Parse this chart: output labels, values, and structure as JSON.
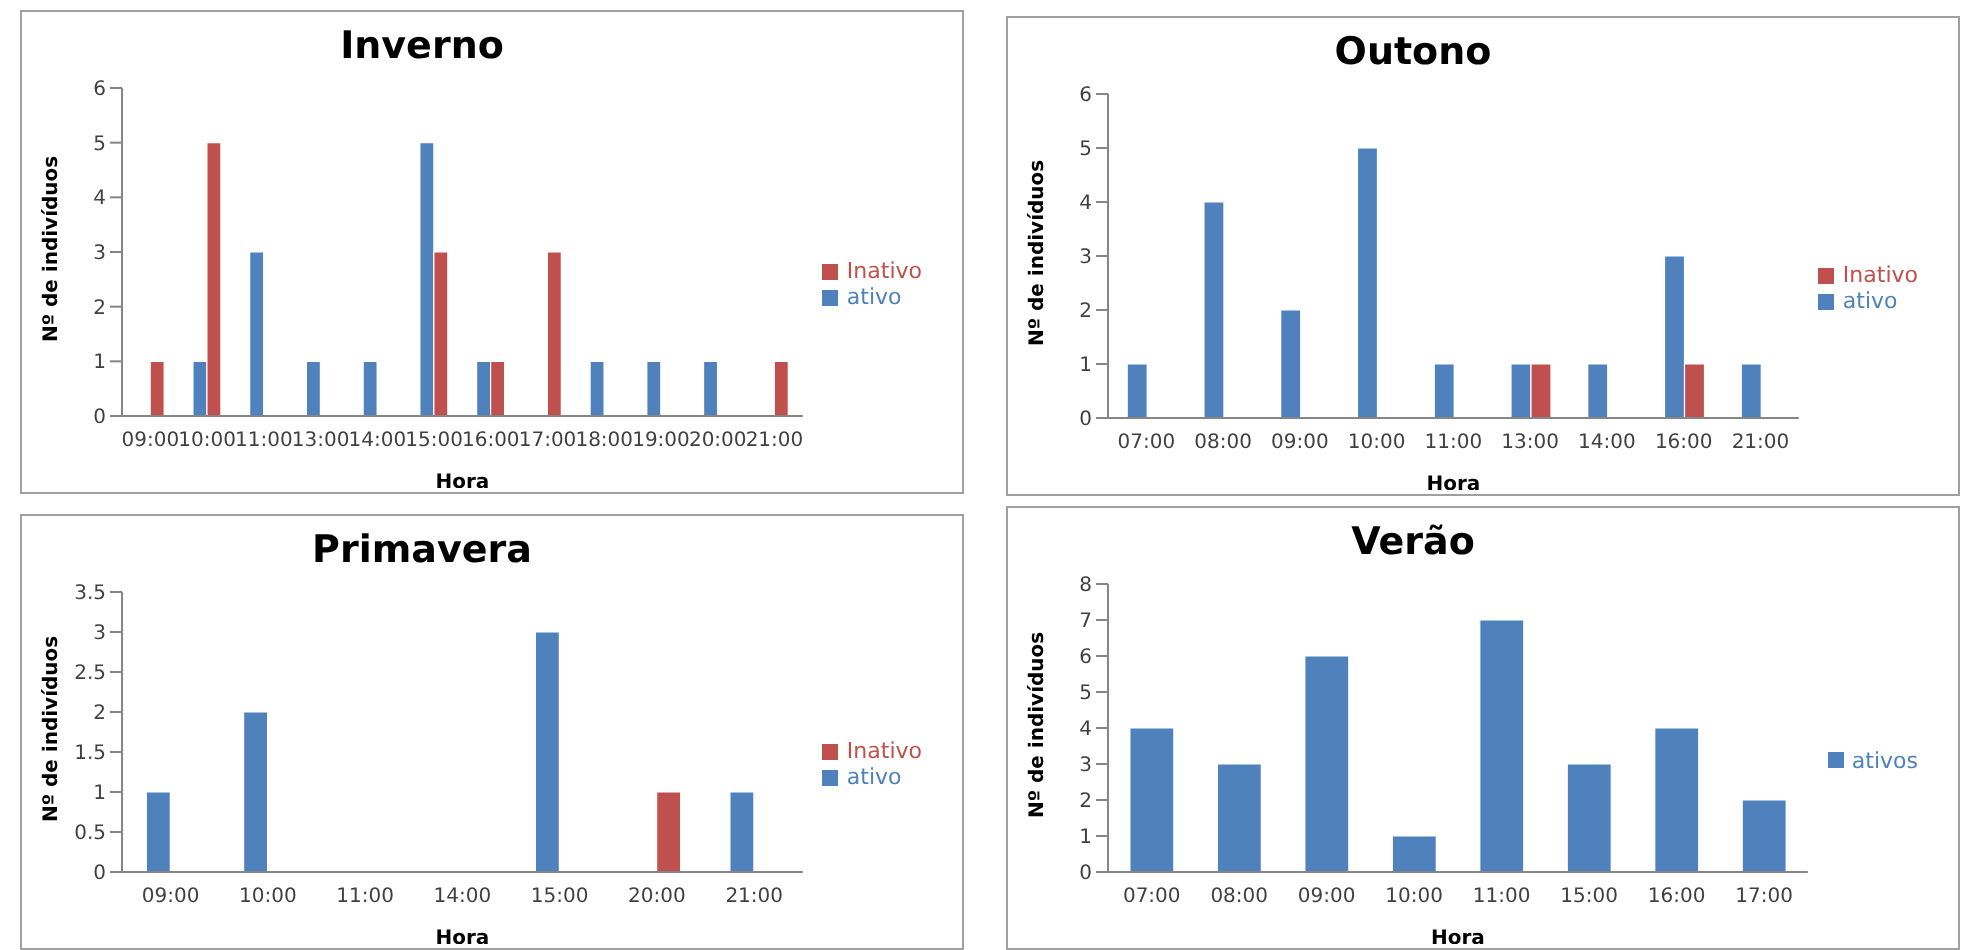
{
  "chart_data": [
    {
      "type": "bar",
      "title": "Inverno",
      "xlabel": "Hora",
      "ylabel": "Nº de indivíduos",
      "categories": [
        "09:00",
        "10:00",
        "11:00",
        "13:00",
        "14:00",
        "15:00",
        "16:00",
        "17:00",
        "18:00",
        "19:00",
        "20:00",
        "21:00"
      ],
      "series": [
        {
          "name": "ativo",
          "color": "#4f81bd",
          "values": [
            null,
            1,
            3,
            1,
            1,
            5,
            1,
            null,
            1,
            1,
            1,
            null
          ]
        },
        {
          "name": "Inativo",
          "color": "#c0504d",
          "values": [
            1,
            5,
            null,
            null,
            null,
            3,
            1,
            3,
            null,
            null,
            null,
            1
          ]
        }
      ],
      "ylim": [
        0,
        6
      ],
      "yticks": [
        0,
        1,
        2,
        3,
        4,
        5,
        6
      ],
      "grid": false,
      "legend": "right"
    },
    {
      "type": "bar",
      "title": "Outono",
      "xlabel": "Hora",
      "ylabel": "Nº de indivíduos",
      "categories": [
        "07:00",
        "08:00",
        "09:00",
        "10:00",
        "11:00",
        "13:00",
        "14:00",
        "16:00",
        "21:00"
      ],
      "series": [
        {
          "name": "ativo",
          "color": "#4f81bd",
          "values": [
            1,
            4,
            2,
            5,
            1,
            1,
            1,
            3,
            1
          ]
        },
        {
          "name": "Inativo",
          "color": "#c0504d",
          "values": [
            null,
            null,
            null,
            null,
            null,
            1,
            null,
            1,
            null
          ]
        }
      ],
      "ylim": [
        0,
        6
      ],
      "yticks": [
        0,
        1,
        2,
        3,
        4,
        5,
        6
      ],
      "grid": false,
      "legend": "right"
    },
    {
      "type": "bar",
      "title": "Primavera",
      "xlabel": "Hora",
      "ylabel": "Nº de indivíduos",
      "categories": [
        "09:00",
        "10:00",
        "11:00",
        "14:00",
        "15:00",
        "20:00",
        "21:00"
      ],
      "series": [
        {
          "name": "ativo",
          "color": "#4f81bd",
          "values": [
            1,
            2,
            null,
            null,
            3,
            null,
            1
          ]
        },
        {
          "name": "Inativo",
          "color": "#c0504d",
          "values": [
            null,
            null,
            null,
            null,
            null,
            1,
            null
          ]
        }
      ],
      "ylim": [
        0,
        3.5
      ],
      "yticks": [
        0,
        0.5,
        1,
        1.5,
        2,
        2.5,
        3,
        3.5
      ],
      "grid": false,
      "legend": "right"
    },
    {
      "type": "bar",
      "title": "Verão",
      "xlabel": "Hora",
      "ylabel": "Nº de indivíduos",
      "categories": [
        "07:00",
        "08:00",
        "09:00",
        "10:00",
        "11:00",
        "15:00",
        "16:00",
        "17:00"
      ],
      "series": [
        {
          "name": "ativos",
          "color": "#4f81bd",
          "values": [
            4,
            3,
            6,
            1,
            7,
            3,
            4,
            2
          ]
        }
      ],
      "ylim": [
        0,
        8
      ],
      "yticks": [
        0,
        1,
        2,
        3,
        4,
        5,
        6,
        7,
        8
      ],
      "grid": false,
      "legend": "right"
    }
  ]
}
